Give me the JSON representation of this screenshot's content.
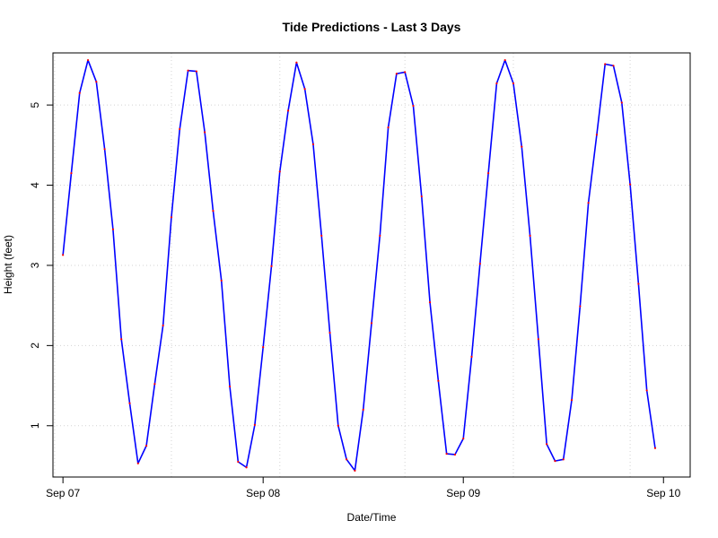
{
  "chart_data": {
    "type": "line",
    "title": "Tide Predictions - Last 3 Days",
    "xlabel": "Date/Time",
    "ylabel": "Height (feet)",
    "x_unit": "hours since Sep 07 00:00",
    "xlim": [
      -1.2,
      75.2
    ],
    "ylim": [
      0.36,
      5.65
    ],
    "grid": true,
    "x_ticks": [
      {
        "label": "Sep 07",
        "value": 0
      },
      {
        "label": "Sep 08",
        "value": 24
      },
      {
        "label": "Sep 09",
        "value": 48
      },
      {
        "label": "Sep 10",
        "value": 72
      }
    ],
    "x_grid_lines": [
      -1,
      13,
      26,
      41,
      54,
      68
    ],
    "y_ticks": [
      1,
      2,
      3,
      4,
      5
    ],
    "y_tick_labels": [
      "1",
      "2",
      "3",
      "4",
      "5"
    ],
    "series": [
      {
        "line_color": "#0000ff",
        "point_color": "#ff0000",
        "x": [
          0,
          1,
          2,
          3,
          4,
          5,
          6,
          7,
          8,
          9,
          10,
          11,
          12,
          13,
          14,
          15,
          16,
          17,
          18,
          19,
          20,
          21,
          22,
          23,
          24,
          25,
          26,
          27,
          28,
          29,
          30,
          31,
          32,
          33,
          34,
          35,
          36,
          37,
          38,
          39,
          40,
          41,
          42,
          43,
          44,
          45,
          46,
          47,
          48,
          49,
          50,
          51,
          52,
          53,
          54,
          55,
          56,
          57,
          58,
          59,
          60,
          61,
          62,
          63,
          64,
          65,
          66,
          67,
          68,
          69,
          70,
          71
        ],
        "values": [
          3.13,
          4.15,
          5.15,
          5.56,
          5.29,
          4.45,
          3.45,
          2.08,
          1.28,
          0.53,
          0.75,
          1.52,
          2.25,
          3.6,
          4.7,
          5.43,
          5.42,
          4.66,
          3.68,
          2.81,
          1.49,
          0.55,
          0.48,
          1.01,
          1.98,
          2.99,
          4.17,
          4.93,
          5.53,
          5.2,
          4.51,
          3.37,
          2.16,
          1.0,
          0.58,
          0.44,
          1.2,
          2.28,
          3.37,
          4.72,
          5.39,
          5.41,
          4.99,
          3.86,
          2.54,
          1.56,
          0.65,
          0.64,
          0.84,
          1.86,
          3.02,
          4.15,
          5.27,
          5.56,
          5.27,
          4.48,
          3.37,
          2.08,
          0.77,
          0.56,
          0.58,
          1.32,
          2.49,
          3.78,
          4.63,
          5.51,
          5.49,
          5.03,
          4.01,
          2.77,
          1.44,
          0.72
        ]
      }
    ]
  }
}
